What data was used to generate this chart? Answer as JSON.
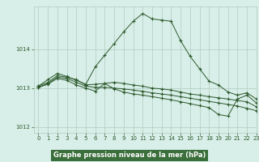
{
  "title": "Graphe pression niveau de la mer (hPa)",
  "bg_color": "#d8eee8",
  "plot_bg_color": "#d8eee8",
  "label_bg_color": "#3a6e3a",
  "grid_color": "#b0ccc0",
  "line_color": "#2d5a2d",
  "label_text_color": "#ffffff",
  "tick_color": "#2d5a2d",
  "xlim": [
    -0.5,
    23
  ],
  "ylim": [
    1011.85,
    1015.1
  ],
  "yticks": [
    1012,
    1013,
    1014
  ],
  "xticks": [
    0,
    1,
    2,
    3,
    4,
    5,
    6,
    7,
    8,
    9,
    10,
    11,
    12,
    13,
    14,
    15,
    16,
    17,
    18,
    19,
    20,
    21,
    22,
    23
  ],
  "series": [
    {
      "x": [
        0,
        1,
        2,
        3,
        4,
        5,
        6,
        7,
        8,
        9,
        10,
        11,
        12,
        13,
        14,
        15,
        16,
        17,
        18,
        19,
        20,
        21,
        22,
        23
      ],
      "y": [
        1013.05,
        1013.22,
        1013.38,
        1013.3,
        1013.2,
        1013.1,
        1013.55,
        1013.85,
        1014.15,
        1014.45,
        1014.72,
        1014.92,
        1014.78,
        1014.75,
        1014.72,
        1014.22,
        1013.82,
        1013.5,
        1013.18,
        1013.08,
        1012.9,
        1012.82,
        1012.88,
        1012.72
      ]
    },
    {
      "x": [
        0,
        1,
        2,
        3,
        4,
        5,
        6,
        7,
        8,
        9,
        10,
        11,
        12,
        13,
        14,
        15,
        16,
        17,
        18,
        19,
        20,
        21,
        22,
        23
      ],
      "y": [
        1013.05,
        1013.15,
        1013.32,
        1013.28,
        1013.22,
        1013.08,
        1013.1,
        1013.12,
        1013.15,
        1013.12,
        1013.08,
        1013.05,
        1013.0,
        1012.98,
        1012.95,
        1012.9,
        1012.85,
        1012.82,
        1012.78,
        1012.75,
        1012.72,
        1012.68,
        1012.65,
        1012.52
      ]
    },
    {
      "x": [
        0,
        1,
        2,
        3,
        4,
        5,
        6,
        7,
        8,
        9,
        10,
        11,
        12,
        13,
        14,
        15,
        16,
        17,
        18,
        19,
        20,
        21,
        22,
        23
      ],
      "y": [
        1013.02,
        1013.12,
        1013.28,
        1013.25,
        1013.15,
        1013.05,
        1013.02,
        1013.02,
        1013.0,
        1012.98,
        1012.95,
        1012.92,
        1012.88,
        1012.85,
        1012.82,
        1012.78,
        1012.74,
        1012.7,
        1012.66,
        1012.62,
        1012.58,
        1012.54,
        1012.48,
        1012.42
      ]
    },
    {
      "x": [
        0,
        1,
        2,
        3,
        4,
        5,
        6,
        7,
        8,
        9,
        10,
        11,
        12,
        13,
        14,
        15,
        16,
        17,
        18,
        19,
        20,
        21,
        22,
        23
      ],
      "y": [
        1013.02,
        1013.1,
        1013.25,
        1013.2,
        1013.08,
        1013.0,
        1012.92,
        1013.12,
        1012.98,
        1012.9,
        1012.85,
        1012.82,
        1012.78,
        1012.74,
        1012.7,
        1012.65,
        1012.6,
        1012.55,
        1012.5,
        1012.32,
        1012.28,
        1012.72,
        1012.82,
        1012.62
      ]
    }
  ]
}
